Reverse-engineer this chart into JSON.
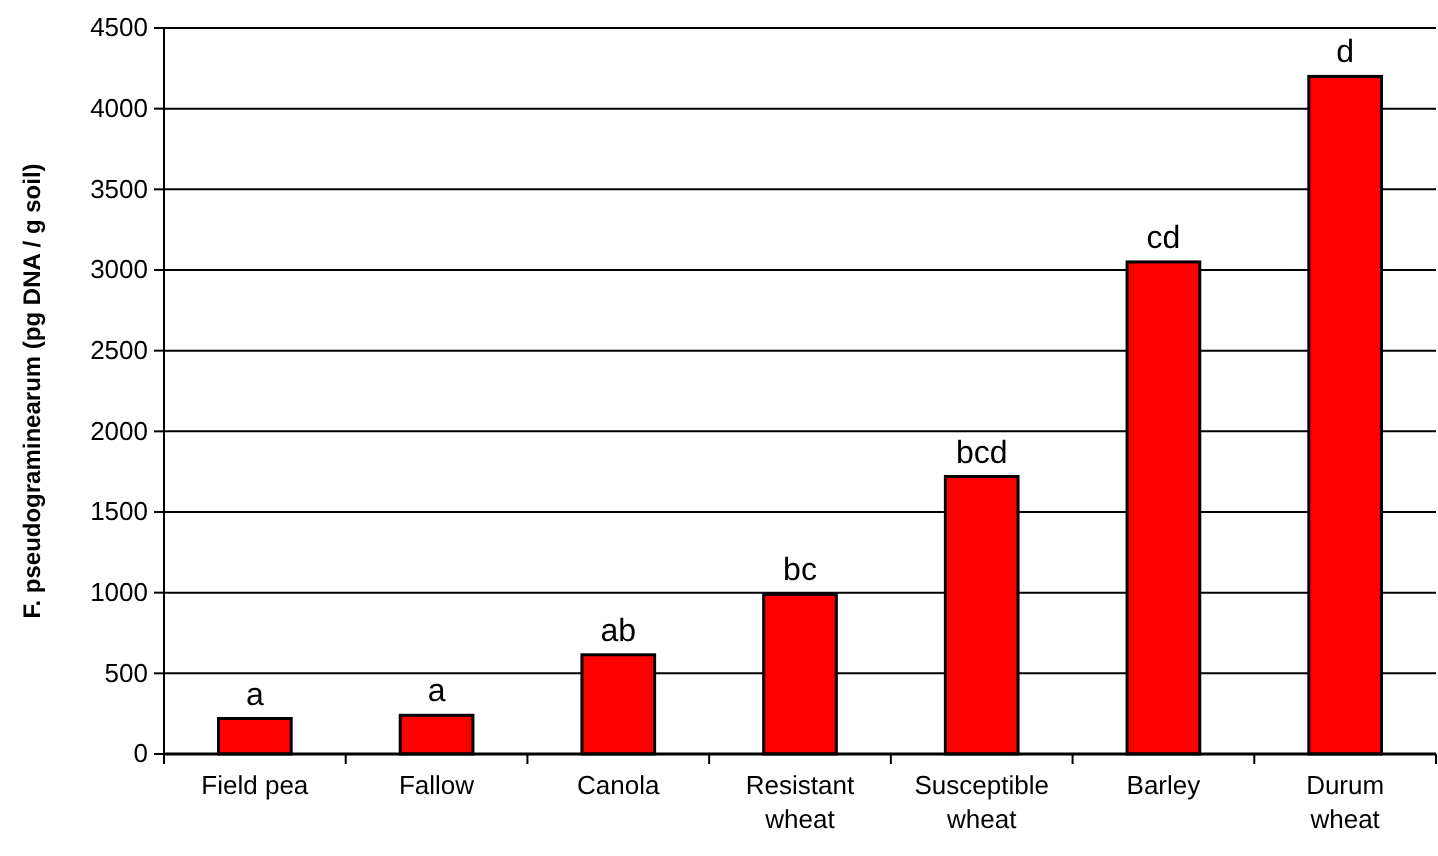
{
  "chart_data": {
    "type": "bar",
    "ylabel": "F. pseudograminearum (pg DNA / g soil)",
    "categories": [
      "Field pea",
      "Fallow",
      "Canola",
      "Resistant wheat",
      "Susceptible wheat",
      "Barley",
      "Durum wheat"
    ],
    "values": [
      220,
      240,
      615,
      990,
      1720,
      3050,
      4200
    ],
    "color": "#ff0000",
    "ylim": [
      0,
      4500
    ],
    "yticks": [
      0,
      500,
      1000,
      1500,
      2000,
      2500,
      3000,
      3500,
      4000,
      4500
    ],
    "grid": "y",
    "annotations": [
      {
        "text": "a",
        "x": "Field pea",
        "y": 220
      },
      {
        "text": "a",
        "x": "Fallow",
        "y": 240
      },
      {
        "text": "ab",
        "x": "Canola",
        "y": 615
      },
      {
        "text": "bc",
        "x": "Resistant wheat",
        "y": 990
      },
      {
        "text": "bcd",
        "x": "Susceptible wheat",
        "y": 1720
      },
      {
        "text": "cd",
        "x": "Barley",
        "y": 3050
      },
      {
        "text": "d",
        "x": "Durum wheat",
        "y": 4200
      }
    ]
  }
}
